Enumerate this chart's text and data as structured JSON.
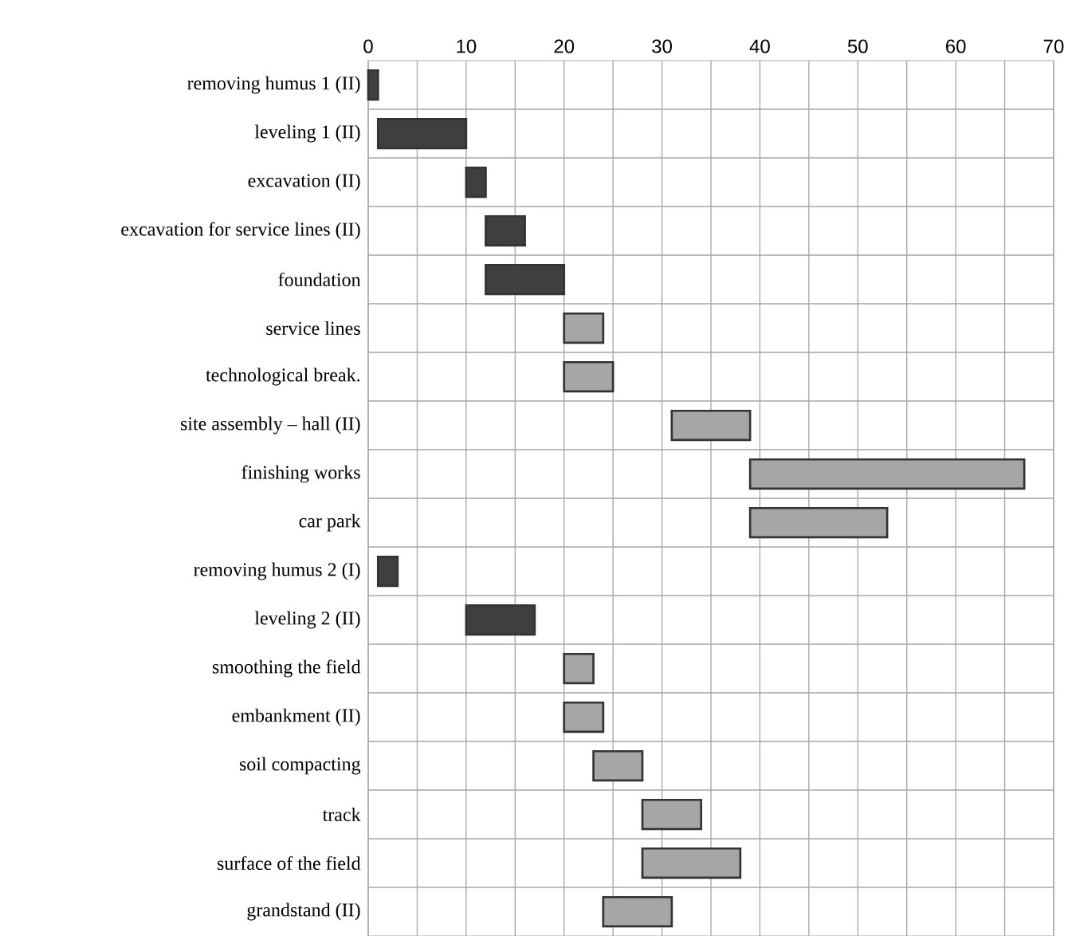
{
  "chart_data": {
    "type": "bar",
    "orientation": "horizontal",
    "categories": [
      "removing humus 1 (II)",
      "leveling 1 (II)",
      "excavation (II)",
      "excavation for service lines (II)",
      "foundation",
      "service lines",
      "technological break.",
      "site assembly – hall (II)",
      "finishing works",
      "car park",
      "removing humus 2 (I)",
      "leveling 2 (II)",
      "smoothing  the field",
      "embankment (II)",
      "soil compacting",
      "track",
      "surface of the field",
      "grandstand (II)"
    ],
    "base": [
      0,
      1,
      10,
      12,
      12,
      20,
      20,
      31,
      39,
      39,
      1,
      10,
      20,
      20,
      23,
      28,
      28,
      24
    ],
    "values": [
      1,
      9,
      2,
      4,
      8,
      4,
      5,
      8,
      28,
      14,
      2,
      7,
      3,
      4,
      5,
      6,
      10,
      7
    ],
    "colors": [
      "#3f3f3f",
      "#3f3f3f",
      "#3f3f3f",
      "#3f3f3f",
      "#3f3f3f",
      "#a6a6a6",
      "#a6a6a6",
      "#a6a6a6",
      "#a6a6a6",
      "#a6a6a6",
      "#3f3f3f",
      "#3f3f3f",
      "#a6a6a6",
      "#a6a6a6",
      "#a6a6a6",
      "#a6a6a6",
      "#a6a6a6",
      "#a6a6a6"
    ],
    "xlim": [
      0,
      70
    ],
    "xticks": [
      0,
      {
        "value": 5,
        "label": null
      },
      10,
      {
        "value": 15,
        "label": null
      },
      20,
      {
        "value": 25,
        "label": null
      },
      30,
      {
        "value": 35,
        "label": null
      },
      40,
      {
        "value": 45,
        "label": null
      },
      50,
      {
        "value": 55,
        "label": null
      },
      60,
      {
        "value": 65,
        "label": null
      },
      70
    ],
    "grid": true
  }
}
